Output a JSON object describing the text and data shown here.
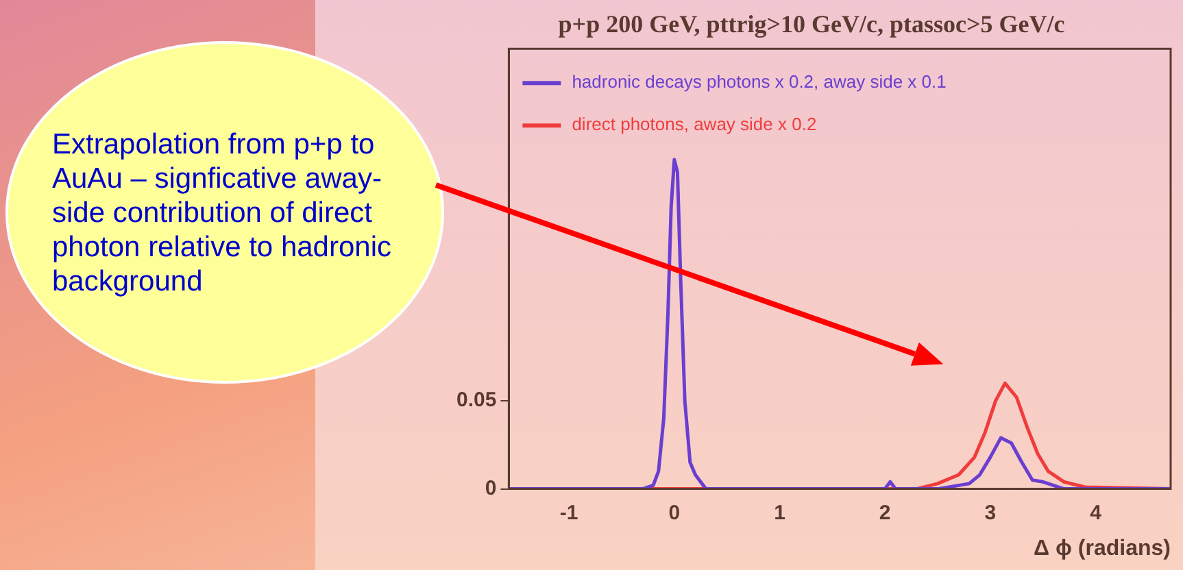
{
  "chart_data": {
    "type": "line",
    "title": "p+p 200 GeV, pttrig>10 GeV/c, ptassoc>5 GeV/c",
    "xlabel": "Δ ϕ (radians)",
    "xlim": [
      -1.5708,
      4.7124
    ],
    "xticks": [
      -1,
      0,
      1,
      2,
      3,
      4
    ],
    "ylim": [
      0,
      0.25
    ],
    "yticks": [
      0,
      0.05
    ],
    "grid": false,
    "legend": "top left",
    "marker": "none",
    "line_style": "solid",
    "annotations": [
      "Extrapolation from p+p to AuAu – signficative away-side contribution of direct photon relative to hadronic background"
    ],
    "series": [
      {
        "name": "hadronic decays photons x 0.2, away side x 0.1",
        "color": "#6a3fd0",
        "x": [
          -1.5708,
          -0.3,
          -0.2,
          -0.15,
          -0.1,
          -0.06,
          -0.03,
          0,
          0.03,
          0.06,
          0.1,
          0.15,
          0.2,
          0.3,
          2.0,
          2.05,
          2.1,
          2.5,
          2.8,
          2.9,
          3.0,
          3.1,
          3.2,
          3.3,
          3.4,
          3.5,
          3.7,
          4.7124
        ],
        "values": [
          0,
          0,
          0.002,
          0.01,
          0.04,
          0.1,
          0.16,
          0.187,
          0.18,
          0.12,
          0.05,
          0.015,
          0.008,
          0,
          0,
          0.004,
          0,
          0,
          0.003,
          0.008,
          0.018,
          0.029,
          0.026,
          0.015,
          0.005,
          0.004,
          0,
          0
        ]
      },
      {
        "name": "direct photons, away side x 0.2",
        "color": "#f03c3c",
        "x": [
          -1.5708,
          2.3,
          2.5,
          2.7,
          2.85,
          2.95,
          3.05,
          3.14,
          3.25,
          3.35,
          3.45,
          3.55,
          3.7,
          3.9,
          4.7124
        ],
        "values": [
          0,
          0,
          0.003,
          0.008,
          0.018,
          0.032,
          0.05,
          0.06,
          0.052,
          0.035,
          0.02,
          0.01,
          0.004,
          0.001,
          0
        ]
      }
    ]
  }
}
